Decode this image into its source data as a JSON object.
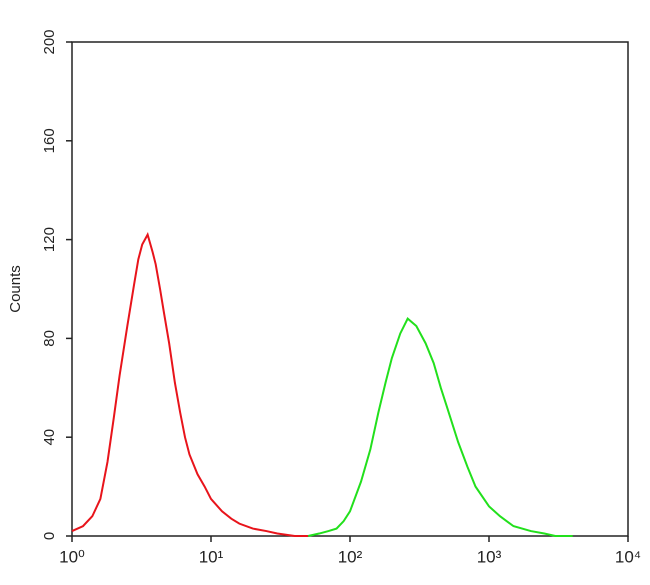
{
  "chart_data": {
    "type": "line",
    "ylabel": "Counts",
    "xscale": "log",
    "xlim": [
      1,
      10000
    ],
    "ylim": [
      0,
      200
    ],
    "yticks": [
      0,
      40,
      80,
      120,
      160,
      200
    ],
    "xticks": [
      {
        "value": 1,
        "label": "10⁰"
      },
      {
        "value": 10,
        "label": "10¹"
      },
      {
        "value": 100,
        "label": "10²"
      },
      {
        "value": 1000,
        "label": "10³"
      },
      {
        "value": 10000,
        "label": "10⁴"
      }
    ],
    "series": [
      {
        "color": "#e8141b",
        "x": [
          1,
          1.2,
          1.4,
          1.6,
          1.8,
          2,
          2.2,
          2.5,
          2.8,
          3,
          3.2,
          3.5,
          3.8,
          4,
          4.3,
          4.6,
          5,
          5.5,
          6,
          6.5,
          7,
          8,
          9,
          10,
          12,
          14,
          16,
          20,
          25,
          30,
          40,
          50
        ],
        "values": [
          2,
          4,
          8,
          15,
          30,
          48,
          65,
          85,
          102,
          112,
          118,
          122,
          115,
          110,
          100,
          90,
          78,
          62,
          50,
          40,
          33,
          25,
          20,
          15,
          10,
          7,
          5,
          3,
          2,
          1,
          0,
          0
        ]
      },
      {
        "color": "#22e01c",
        "x": [
          50,
          60,
          70,
          80,
          90,
          100,
          120,
          140,
          160,
          180,
          200,
          230,
          260,
          300,
          350,
          400,
          450,
          500,
          600,
          700,
          800,
          1000,
          1200,
          1500,
          2000,
          2500,
          3000,
          4000
        ],
        "values": [
          0,
          1,
          2,
          3,
          6,
          10,
          22,
          35,
          50,
          62,
          72,
          82,
          88,
          85,
          78,
          70,
          60,
          52,
          38,
          28,
          20,
          12,
          8,
          4,
          2,
          1,
          0,
          0
        ]
      }
    ]
  }
}
